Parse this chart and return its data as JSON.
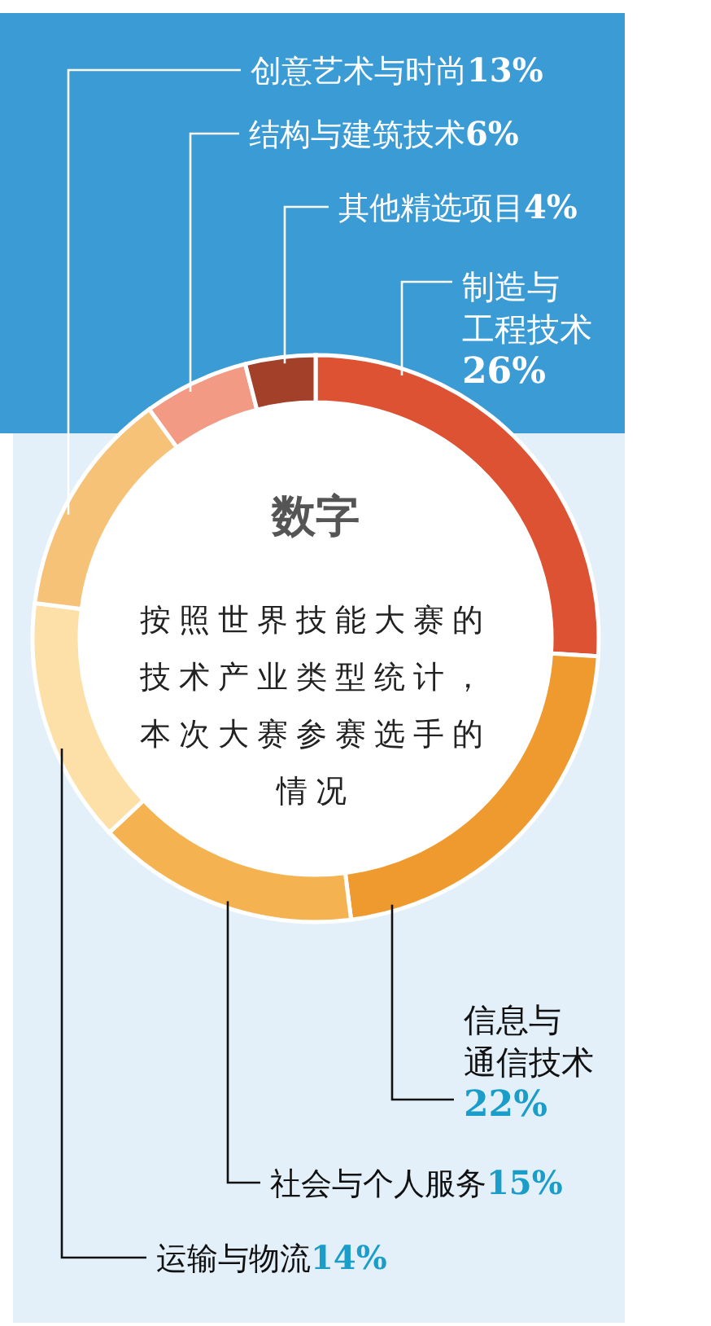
{
  "chart_data": {
    "type": "donut",
    "title": "数字",
    "subtitle": "按照世界技能大赛的技术产业类型统计，本次大赛参赛选手的情况",
    "categories": [
      "制造与工程技术",
      "信息与通信技术",
      "社会与个人服务",
      "运输与物流",
      "创意艺术与时尚",
      "结构与建筑技术",
      "其他精选项目"
    ],
    "values": [
      26,
      22,
      15,
      14,
      13,
      6,
      4
    ],
    "colors": [
      "#dc5232",
      "#ef9a2e",
      "#f4b350",
      "#fde0a8",
      "#f6c277",
      "#f29a84",
      "#a3402a"
    ],
    "value_labels": [
      "26%",
      "22%",
      "15%",
      "14%",
      "13%",
      "6%",
      "4%"
    ]
  }
}
